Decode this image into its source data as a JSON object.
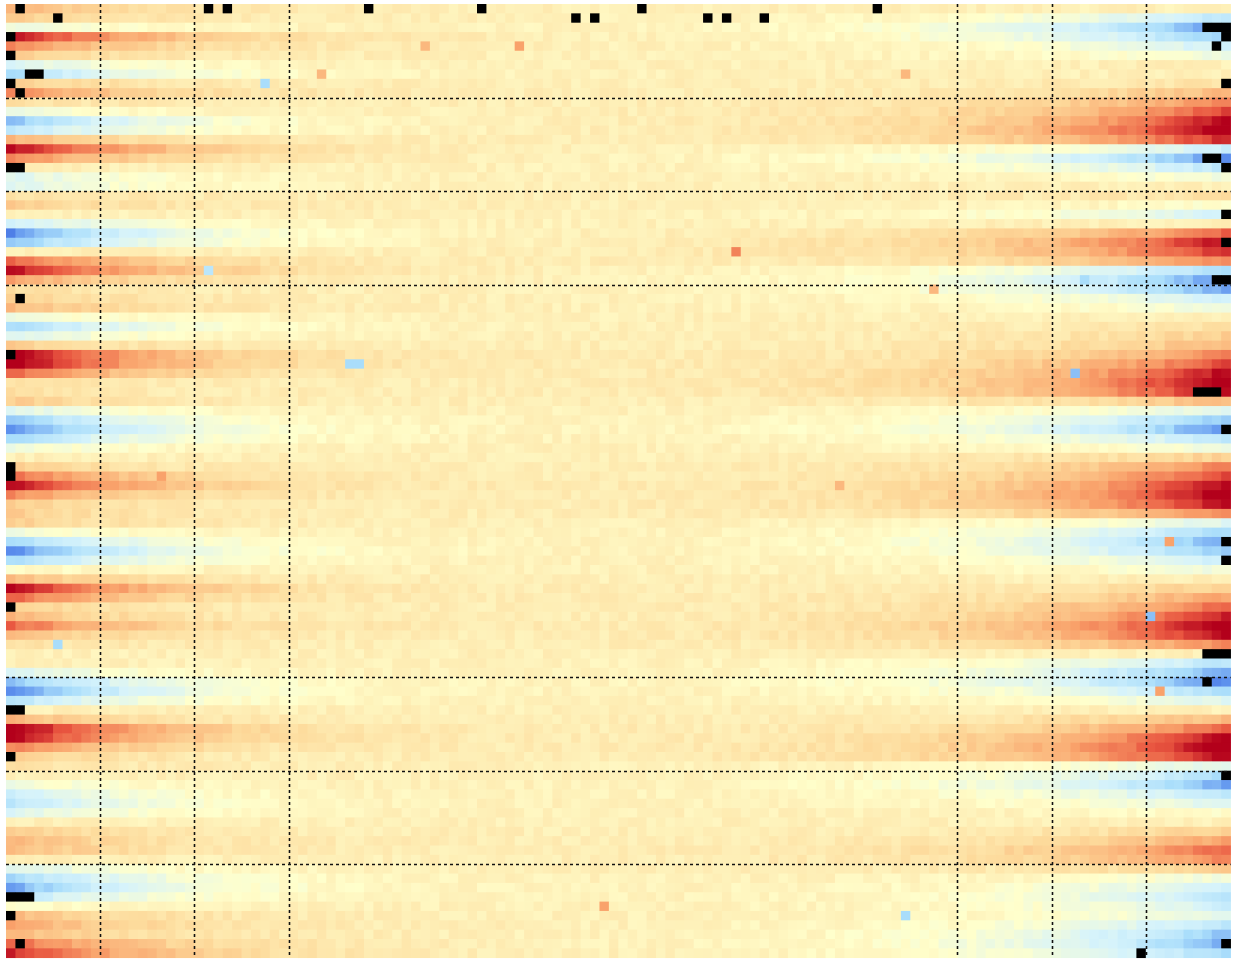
{
  "chart_data": {
    "type": "heatmap",
    "title": "",
    "xlabel": "",
    "ylabel": "",
    "n_cols": 130,
    "n_rows": 102,
    "grid": "dotted",
    "colorscale": [
      "#2b4fd8",
      "#5f93ee",
      "#a9ddfb",
      "#d6f3fb",
      "#ffffcc",
      "#fdd99a",
      "#f9a26b",
      "#e8543f",
      "#b3001b"
    ],
    "missing_color": "#000000",
    "value_range": [
      -1,
      1
    ],
    "vertical_grid_cols": [
      10,
      20,
      30,
      101,
      111,
      121
    ],
    "horizontal_grid_rows": [
      10,
      20,
      30,
      72,
      82,
      92
    ],
    "row_profile": [
      0.3,
      0.2,
      -0.2,
      0.9,
      0.5,
      0.2,
      -0.3,
      -0.6,
      0.2,
      0.5,
      0.1,
      -0.2,
      -0.7,
      -0.5,
      0.3,
      0.9,
      0.5,
      0.0,
      -0.3,
      -0.3,
      0.1,
      0.2,
      0.0,
      -0.4,
      -0.9,
      -0.7,
      0.0,
      0.6,
      0.9,
      0.4,
      0.1,
      0.2,
      0.3,
      -0.2,
      -0.6,
      -0.3,
      0.2,
      1.0,
      1.0,
      0.6,
      0.1,
      0.1,
      0.2,
      -0.3,
      -0.7,
      -0.9,
      -0.6,
      -0.2,
      0.0,
      0.2,
      0.6,
      0.9,
      0.5,
      0.2,
      0.2,
      0.2,
      -0.2,
      -0.6,
      -0.9,
      -0.6,
      -0.1,
      0.3,
      0.9,
      0.6,
      0.2,
      0.3,
      0.6,
      0.3,
      0.1,
      0.0,
      0.0,
      -0.3,
      -0.7,
      -0.9,
      -0.5,
      0.0,
      0.3,
      1.0,
      0.9,
      0.5,
      0.2,
      0.1,
      0.0,
      -0.2,
      -0.4,
      -0.5,
      -0.3,
      0.0,
      0.2,
      0.3,
      0.3,
      0.0,
      -0.3,
      -0.6,
      -0.8,
      -0.5,
      -0.1,
      0.3,
      0.4,
      0.3,
      0.6,
      0.8
    ],
    "right_profile": [
      0.0,
      -0.5,
      -0.9,
      -0.7,
      -0.4,
      -0.2,
      0.0,
      0.0,
      0.1,
      0.3,
      0.5,
      0.7,
      0.9,
      1.0,
      0.8,
      -0.4,
      -0.9,
      -0.5,
      -0.2,
      0.0,
      0.1,
      -0.1,
      -0.4,
      0.0,
      0.6,
      0.9,
      0.8,
      0.5,
      -0.6,
      -0.9,
      -0.8,
      -0.4,
      -0.2,
      0.0,
      0.1,
      0.2,
      0.3,
      0.5,
      0.7,
      0.9,
      1.0,
      0.9,
      0.3,
      -0.3,
      -0.7,
      -0.9,
      -0.5,
      -0.2,
      0.2,
      0.5,
      0.7,
      0.9,
      1.0,
      0.9,
      0.5,
      -0.3,
      -0.6,
      -0.8,
      -0.7,
      -0.4,
      -0.2,
      0.0,
      0.2,
      0.4,
      0.6,
      0.8,
      1.0,
      0.9,
      0.5,
      0.0,
      -0.5,
      -0.8,
      -0.9,
      -0.6,
      -0.3,
      0.0,
      0.3,
      0.6,
      0.9,
      1.0,
      0.9,
      -0.3,
      -0.6,
      -0.8,
      -0.5,
      -0.3,
      -0.1,
      0.0,
      0.2,
      0.4,
      0.6,
      0.5,
      0.2,
      -0.2,
      -0.4,
      -0.5,
      -0.4,
      -0.3,
      -0.5,
      -0.7,
      -0.8,
      -0.6
    ],
    "missing_cells": [
      [
        1,
        0
      ],
      [
        21,
        0
      ],
      [
        23,
        0
      ],
      [
        38,
        0
      ],
      [
        50,
        0
      ],
      [
        67,
        0
      ],
      [
        92,
        0
      ],
      [
        5,
        1
      ],
      [
        60,
        1
      ],
      [
        62,
        1
      ],
      [
        74,
        1
      ],
      [
        76,
        1
      ],
      [
        80,
        1
      ],
      [
        0,
        3
      ],
      [
        129,
        3
      ],
      [
        127,
        2
      ],
      [
        128,
        2
      ],
      [
        129,
        2
      ],
      [
        128,
        4
      ],
      [
        0,
        5
      ],
      [
        2,
        7
      ],
      [
        3,
        7
      ],
      [
        129,
        8
      ],
      [
        0,
        8
      ],
      [
        1,
        9
      ],
      [
        127,
        16
      ],
      [
        128,
        16
      ],
      [
        1,
        17
      ],
      [
        0,
        17
      ],
      [
        129,
        17
      ],
      [
        129,
        22
      ],
      [
        129,
        25
      ],
      [
        129,
        29
      ],
      [
        128,
        29
      ],
      [
        1,
        31
      ],
      [
        0,
        37
      ],
      [
        126,
        41
      ],
      [
        127,
        41
      ],
      [
        128,
        41
      ],
      [
        129,
        45
      ],
      [
        0,
        49
      ],
      [
        0,
        50
      ],
      [
        129,
        57
      ],
      [
        129,
        59
      ],
      [
        0,
        64
      ],
      [
        127,
        69
      ],
      [
        128,
        69
      ],
      [
        129,
        69
      ],
      [
        127,
        72
      ],
      [
        1,
        75
      ],
      [
        0,
        75
      ],
      [
        0,
        80
      ],
      [
        129,
        82
      ],
      [
        0,
        95
      ],
      [
        1,
        95
      ],
      [
        2,
        95
      ],
      [
        0,
        97
      ],
      [
        1,
        100
      ],
      [
        129,
        100
      ],
      [
        120,
        101
      ]
    ],
    "outlier_cells": [
      [
        36,
        38,
        -0.5
      ],
      [
        37,
        38,
        -0.5
      ],
      [
        21,
        28,
        -0.4
      ],
      [
        77,
        26,
        0.6
      ],
      [
        54,
        4,
        0.5
      ],
      [
        44,
        4,
        0.4
      ],
      [
        98,
        30,
        0.4
      ],
      [
        16,
        50,
        0.5
      ],
      [
        88,
        51,
        0.4
      ],
      [
        95,
        97,
        -0.5
      ],
      [
        63,
        96,
        0.5
      ],
      [
        5,
        68,
        -0.5
      ],
      [
        121,
        65,
        -0.6
      ],
      [
        113,
        39,
        -0.6
      ],
      [
        114,
        29,
        -0.5
      ],
      [
        95,
        7,
        0.4
      ],
      [
        33,
        7,
        0.4
      ],
      [
        27,
        8,
        -0.5
      ],
      [
        122,
        73,
        0.5
      ],
      [
        123,
        57,
        0.5
      ]
    ]
  }
}
